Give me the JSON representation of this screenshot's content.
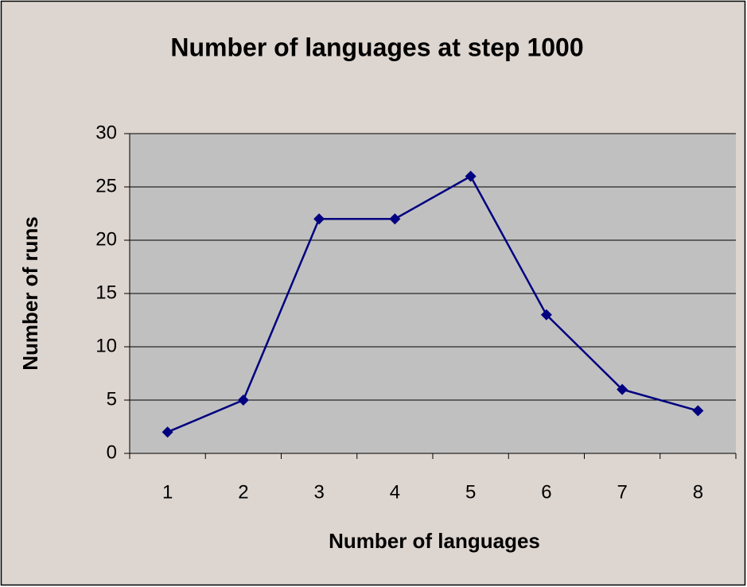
{
  "chart_data": {
    "type": "line",
    "title": "Number of languages at step 1000",
    "x_label": "Number of languages",
    "y_label": "Number of runs",
    "categories": [
      "1",
      "2",
      "3",
      "4",
      "5",
      "6",
      "7",
      "8"
    ],
    "values": [
      2,
      5,
      22,
      22,
      26,
      13,
      6,
      4
    ],
    "color": "#000080",
    "ylim": [
      0,
      30
    ],
    "yticks": [
      0,
      5,
      10,
      15,
      20,
      25,
      30
    ],
    "grid": true
  }
}
